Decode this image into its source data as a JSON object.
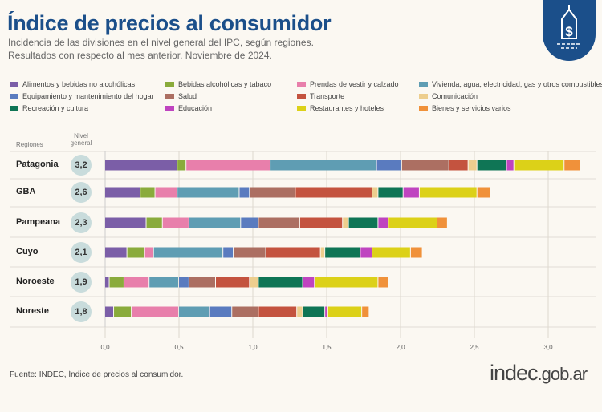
{
  "header": {
    "title": "Índice de precios al consumidor",
    "subtitle_1": "Incidencia de las divisiones en el nivel general del IPC, según regiones.",
    "subtitle_2": "Resultados con respecto al mes anterior. Noviembre de 2024.",
    "logo_icon": "price-tag-dollar-icon"
  },
  "footer": {
    "source": "Fuente: INDEC, Índice de precios al consumidor.",
    "brand": "indec",
    "brand_suffix": ".gob.ar"
  },
  "chart_data": {
    "type": "bar",
    "orientation": "horizontal",
    "stacked": true,
    "row_header": "Regiones",
    "level_header": "Nivel general",
    "categories": [
      "Patagonia",
      "GBA",
      "Pampeana",
      "Cuyo",
      "Noroeste",
      "Noreste"
    ],
    "nivel_general": [
      "3,2",
      "2,6",
      "2,3",
      "2,1",
      "1,9",
      "1,8"
    ],
    "xlim": [
      0,
      3.25
    ],
    "xticks": [
      "0,0",
      "0,5",
      "1,0",
      "1,5",
      "2,0",
      "2,5",
      "3,0"
    ],
    "grid": true,
    "legend_position": "top",
    "series": [
      {
        "name": "Alimentos y bebidas no alcohólicas",
        "color": "#7b5ea7",
        "values": [
          0.49,
          0.24,
          0.28,
          0.15,
          0.03,
          0.06
        ]
      },
      {
        "name": "Bebidas alcohólicas y tabaco",
        "color": "#8aab3c",
        "values": [
          0.06,
          0.1,
          0.11,
          0.12,
          0.1,
          0.12
        ]
      },
      {
        "name": "Prendas de vestir y calzado",
        "color": "#e87fab",
        "values": [
          0.57,
          0.15,
          0.18,
          0.06,
          0.17,
          0.32
        ]
      },
      {
        "name": "Vivienda, agua, electricidad, gas y otros combustibles",
        "color": "#5f9db3",
        "values": [
          0.72,
          0.42,
          0.35,
          0.47,
          0.2,
          0.21
        ]
      },
      {
        "name": "Equipamiento y mantenimiento del hogar",
        "color": "#5a7bbf",
        "values": [
          0.17,
          0.07,
          0.12,
          0.07,
          0.07,
          0.15
        ]
      },
      {
        "name": "Salud",
        "color": "#ac6f62",
        "values": [
          0.32,
          0.31,
          0.28,
          0.22,
          0.18,
          0.18
        ]
      },
      {
        "name": "Transporte",
        "color": "#c4533f",
        "values": [
          0.13,
          0.52,
          0.29,
          0.37,
          0.23,
          0.26
        ]
      },
      {
        "name": "Comunicación",
        "color": "#edce8e",
        "values": [
          0.06,
          0.04,
          0.04,
          0.03,
          0.06,
          0.04
        ]
      },
      {
        "name": "Recreación y cultura",
        "color": "#0f7555",
        "values": [
          0.2,
          0.17,
          0.2,
          0.24,
          0.3,
          0.15
        ]
      },
      {
        "name": "Educación",
        "color": "#bf44c0",
        "values": [
          0.05,
          0.11,
          0.07,
          0.08,
          0.08,
          0.02
        ]
      },
      {
        "name": "Restaurantes y hoteles",
        "color": "#dcd118",
        "values": [
          0.34,
          0.39,
          0.33,
          0.26,
          0.43,
          0.23
        ]
      },
      {
        "name": "Bienes y servicios varios",
        "color": "#f0913a",
        "values": [
          0.11,
          0.09,
          0.07,
          0.08,
          0.07,
          0.05
        ]
      }
    ]
  }
}
